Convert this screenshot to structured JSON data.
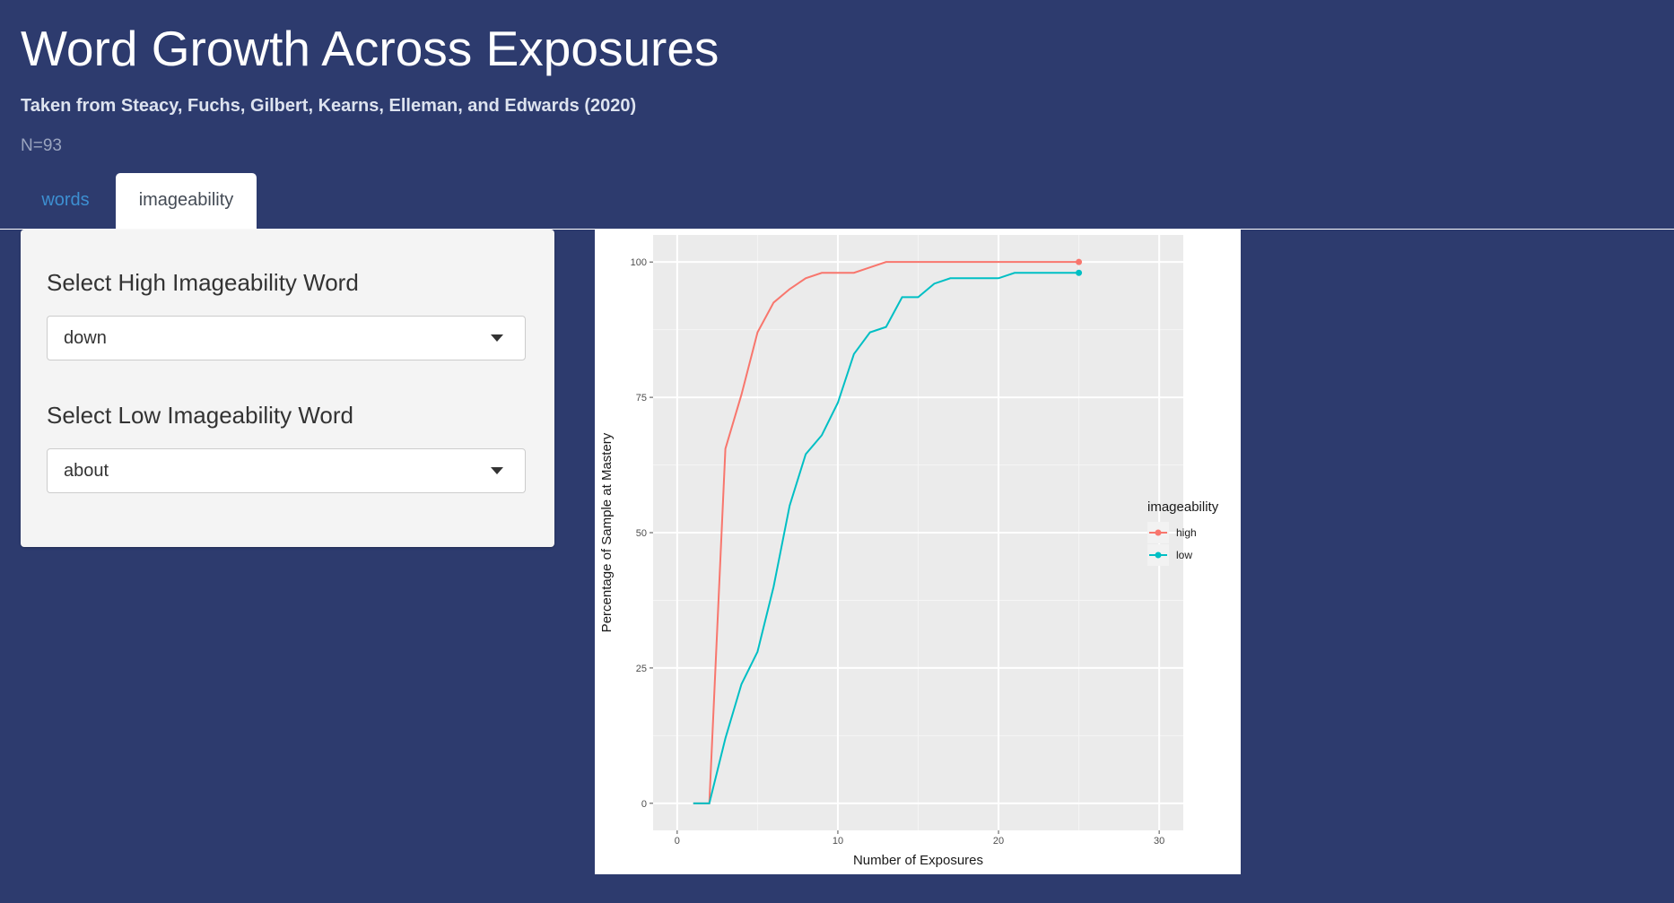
{
  "header": {
    "title": "Word Growth Across Exposures",
    "subtitle": "Taken from Steacy, Fuchs, Gilbert, Kearns, Elleman, and Edwards (2020)",
    "sample_size": "N=93"
  },
  "tabs": [
    {
      "label": "words",
      "active": false
    },
    {
      "label": "imageability",
      "active": true
    }
  ],
  "sidebar": {
    "high_label": "Select High Imageability Word",
    "high_value": "down",
    "low_label": "Select Low Imageability Word",
    "low_value": "about"
  },
  "icons": {
    "dropdown": "chevron-down-icon"
  },
  "colors": {
    "background": "#2d3b6e",
    "tab_link": "#3d8fd1",
    "series_high": "#f8766d",
    "series_low": "#00bfc4",
    "plot_panel": "#ebebeb"
  },
  "chart_data": {
    "type": "line",
    "xlabel": "Number of Exposures",
    "ylabel": "Percentage of Sample at Mastery",
    "xlim": [
      -1.5,
      31.5
    ],
    "ylim": [
      -5,
      105
    ],
    "x_ticks": [
      0,
      10,
      20,
      30
    ],
    "y_ticks": [
      0,
      25,
      50,
      75,
      100
    ],
    "grid": true,
    "legend_title": "imageability",
    "legend_position": "right",
    "series": [
      {
        "name": "high",
        "color": "#f8766d",
        "x": [
          1,
          2,
          3,
          4,
          5,
          6,
          7,
          8,
          9,
          10,
          11,
          12,
          13,
          14,
          15,
          16,
          17,
          18,
          19,
          20,
          21,
          22,
          23,
          24,
          25
        ],
        "y": [
          0,
          0,
          65.5,
          75.5,
          87,
          92.5,
          95,
          97,
          98,
          98,
          98,
          99,
          100,
          100,
          100,
          100,
          100,
          100,
          100,
          100,
          100,
          100,
          100,
          100,
          100
        ]
      },
      {
        "name": "low",
        "color": "#00bfc4",
        "x": [
          1,
          2,
          3,
          4,
          5,
          6,
          7,
          8,
          9,
          10,
          11,
          12,
          13,
          14,
          15,
          16,
          17,
          18,
          19,
          20,
          21,
          22,
          23,
          24,
          25
        ],
        "y": [
          0,
          0,
          12,
          22,
          28,
          40,
          55,
          64.5,
          68,
          74,
          83,
          87,
          88,
          93.5,
          93.5,
          96,
          97,
          97,
          97,
          97,
          98,
          98,
          98,
          98,
          98
        ]
      }
    ]
  }
}
